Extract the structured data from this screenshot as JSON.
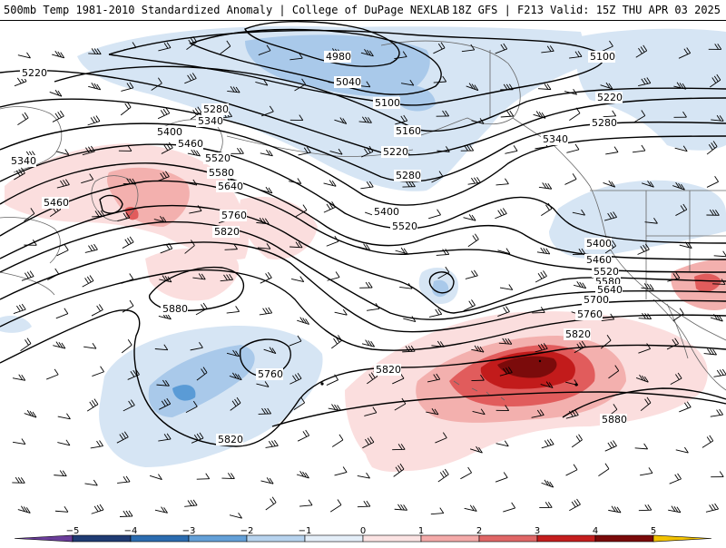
{
  "header": {
    "title_left": "500mb Temp 1981-2010 Standardized Anomaly | College of DuPage NEXLAB",
    "title_right": "18Z GFS | F213 Valid: 15Z THU APR 03 2025"
  },
  "contour_labels": {
    "c4980": "4980",
    "c5040": "5040",
    "c5100a": "5100",
    "c5100b": "5100",
    "c5160": "5160",
    "c5220a": "5220",
    "c5220b": "5220",
    "c5220c": "5220",
    "c5280a": "5280",
    "c5280b": "5280",
    "c5280c": "5280",
    "c5340a": "5340",
    "c5340b": "5340",
    "c5340c": "5340",
    "c5400a": "5400",
    "c5400b": "5400",
    "c5400c": "5400",
    "c5460a": "5460",
    "c5460b": "5460",
    "c5460c": "5460",
    "c5520a": "5520",
    "c5520b": "5520",
    "c5520c": "5520",
    "c5580a": "5580",
    "c5580b": "5580",
    "c5640a": "5640",
    "c5640b": "5640",
    "c5700": "5700",
    "c5760a": "5760",
    "c5760b": "5760",
    "c5760c": "5760",
    "c5820a": "5820",
    "c5820b": "5820",
    "c5820c": "5820",
    "c5820d": "5820",
    "c5880a": "5880",
    "c5880b": "5880"
  },
  "colorbar": {
    "ticks": [
      "−5",
      "−4",
      "−3",
      "−2",
      "−1",
      "0",
      "1",
      "2",
      "3",
      "4",
      "5"
    ],
    "colors": [
      "#6a3d9a",
      "#1f3b73",
      "#2b6cb0",
      "#63a0d8",
      "#b7d3ee",
      "#e4eef8",
      "#fbe3e3",
      "#f4aaa9",
      "#e06666",
      "#c41e1e",
      "#7a0a0a",
      "#f2c200"
    ]
  },
  "anomaly_colors": {
    "neg1": "#d6e5f4",
    "neg2": "#a9c9ea",
    "neg3": "#5a9bd6",
    "pos1": "#fbdede",
    "pos2": "#f3b0ae",
    "pos3": "#e15c5c",
    "pos4": "#c21b1b",
    "pos5": "#7b0b0b"
  }
}
